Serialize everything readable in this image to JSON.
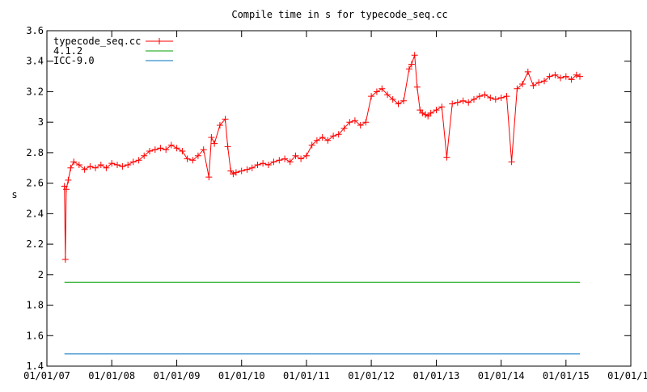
{
  "chart_data": {
    "type": "line",
    "title": "Compile time in s for typecode_seq.cc",
    "xlabel": "",
    "ylabel": "s",
    "xlim": [
      "2007-01-01",
      "2016-01-01"
    ],
    "ylim": [
      1.4,
      3.6
    ],
    "x_ticks": [
      "01/01/07",
      "01/01/08",
      "01/01/09",
      "01/01/10",
      "01/01/11",
      "01/01/12",
      "01/01/13",
      "01/01/14",
      "01/01/15",
      "01/01/16"
    ],
    "y_ticks": [
      "1.4",
      "1.6",
      "1.8",
      "2",
      "2.2",
      "2.4",
      "2.6",
      "2.8",
      "3",
      "3.2",
      "3.4",
      "3.6"
    ],
    "grid": false,
    "legend_position": "top-left",
    "series": [
      {
        "name": "typecode_seq.cc",
        "color": "#ff0000",
        "marker": "plus",
        "x": [
          "2007-04-10",
          "2007-04-15",
          "2007-04-20",
          "2007-05-01",
          "2007-05-15",
          "2007-06-01",
          "2007-07-01",
          "2007-08-01",
          "2007-09-01",
          "2007-10-01",
          "2007-11-01",
          "2007-12-01",
          "2008-01-01",
          "2008-02-01",
          "2008-03-01",
          "2008-04-01",
          "2008-05-01",
          "2008-06-01",
          "2008-07-01",
          "2008-08-01",
          "2008-09-01",
          "2008-10-01",
          "2008-11-01",
          "2008-12-01",
          "2009-01-01",
          "2009-02-01",
          "2009-03-01",
          "2009-04-01",
          "2009-05-01",
          "2009-06-01",
          "2009-07-01",
          "2009-07-15",
          "2009-08-01",
          "2009-09-01",
          "2009-10-01",
          "2009-10-15",
          "2009-11-01",
          "2009-11-15",
          "2009-12-01",
          "2010-01-01",
          "2010-02-01",
          "2010-03-01",
          "2010-04-01",
          "2010-05-01",
          "2010-06-01",
          "2010-07-01",
          "2010-08-01",
          "2010-09-01",
          "2010-10-01",
          "2010-11-01",
          "2010-12-01",
          "2011-01-01",
          "2011-02-01",
          "2011-03-01",
          "2011-04-01",
          "2011-05-01",
          "2011-06-01",
          "2011-07-01",
          "2011-08-01",
          "2011-09-01",
          "2011-10-01",
          "2011-11-01",
          "2011-12-01",
          "2012-01-01",
          "2012-02-01",
          "2012-03-01",
          "2012-04-01",
          "2012-05-01",
          "2012-06-01",
          "2012-07-01",
          "2012-08-01",
          "2012-08-15",
          "2012-09-01",
          "2012-09-15",
          "2012-10-01",
          "2012-10-15",
          "2012-11-01",
          "2012-11-15",
          "2012-12-01",
          "2013-01-01",
          "2013-02-01",
          "2013-03-01",
          "2013-04-01",
          "2013-05-01",
          "2013-06-01",
          "2013-07-01",
          "2013-08-01",
          "2013-09-01",
          "2013-10-01",
          "2013-11-01",
          "2013-12-01",
          "2014-01-01",
          "2014-02-01",
          "2014-03-01",
          "2014-04-01",
          "2014-05-01",
          "2014-06-01",
          "2014-07-01",
          "2014-08-01",
          "2014-09-01",
          "2014-10-01",
          "2014-11-01",
          "2014-12-01",
          "2015-01-01",
          "2015-02-01",
          "2015-03-01",
          "2015-03-20"
        ],
        "y": [
          2.58,
          2.1,
          2.56,
          2.62,
          2.7,
          2.74,
          2.72,
          2.69,
          2.71,
          2.7,
          2.72,
          2.7,
          2.73,
          2.72,
          2.71,
          2.72,
          2.74,
          2.75,
          2.78,
          2.81,
          2.82,
          2.83,
          2.82,
          2.85,
          2.83,
          2.81,
          2.76,
          2.75,
          2.78,
          2.82,
          2.64,
          2.9,
          2.86,
          2.98,
          3.02,
          2.84,
          2.68,
          2.66,
          2.67,
          2.68,
          2.69,
          2.7,
          2.72,
          2.73,
          2.72,
          2.74,
          2.75,
          2.76,
          2.74,
          2.78,
          2.76,
          2.78,
          2.85,
          2.88,
          2.9,
          2.88,
          2.91,
          2.92,
          2.96,
          3.0,
          3.01,
          2.98,
          3.0,
          3.17,
          3.2,
          3.22,
          3.18,
          3.15,
          3.12,
          3.14,
          3.35,
          3.38,
          3.44,
          3.23,
          3.08,
          3.06,
          3.05,
          3.04,
          3.06,
          3.08,
          3.1,
          2.77,
          3.12,
          3.13,
          3.14,
          3.13,
          3.15,
          3.17,
          3.18,
          3.16,
          3.15,
          3.16,
          3.17,
          2.74,
          3.22,
          3.25,
          3.33,
          3.24,
          3.26,
          3.27,
          3.3,
          3.31,
          3.29,
          3.3,
          3.28,
          3.31,
          3.3
        ]
      },
      {
        "name": "4.1.2",
        "color": "#00a000",
        "marker": "none",
        "x": [
          "2007-04-10",
          "2015-03-20"
        ],
        "y": [
          1.95,
          1.95
        ]
      },
      {
        "name": "ICC-9.0",
        "color": "#0070c0",
        "marker": "none",
        "x": [
          "2007-04-10",
          "2015-03-20"
        ],
        "y": [
          1.48,
          1.48
        ]
      }
    ]
  }
}
